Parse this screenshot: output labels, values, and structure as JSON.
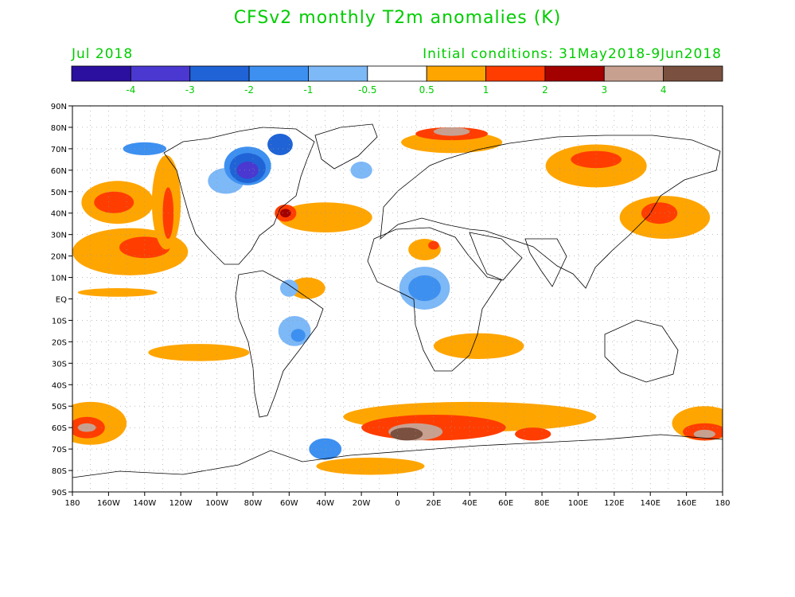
{
  "title": "CFSv2 monthly T2m anomalies (K)",
  "valid_month": "Jul 2018",
  "initial_conditions": "Initial conditions: 31May2018-9Jun2018",
  "colorbar": {
    "colors": [
      "#2b0f9e",
      "#4a38d0",
      "#1f63d6",
      "#3d90f0",
      "#7db8f7",
      "#ffffff",
      "#ffa500",
      "#ff3d00",
      "#a30000",
      "#c8a090",
      "#7a5040"
    ],
    "labels": [
      "-4",
      "-3",
      "-2",
      "-1",
      "-0.5",
      "0.5",
      "1",
      "2",
      "3",
      "4"
    ]
  },
  "axes": {
    "lat_labels": [
      "90N",
      "80N",
      "70N",
      "60N",
      "50N",
      "40N",
      "30N",
      "20N",
      "10N",
      "EQ",
      "10S",
      "20S",
      "30S",
      "40S",
      "50S",
      "60S",
      "70S",
      "80S",
      "90S"
    ],
    "lon_labels": [
      "180",
      "160W",
      "140W",
      "120W",
      "100W",
      "80W",
      "60W",
      "40W",
      "20W",
      "0",
      "20E",
      "40E",
      "60E",
      "80E",
      "100E",
      "120E",
      "140E",
      "160E",
      "180"
    ],
    "lon_range": [
      -180,
      180
    ],
    "lat_range": [
      -90,
      90
    ],
    "grid": "dotted"
  },
  "anomaly_regions": [
    {
      "lon": -50,
      "lat": 5,
      "rx": 10,
      "ry": 5,
      "level": "0.5"
    },
    {
      "lon": -155,
      "lat": 45,
      "rx": 20,
      "ry": 10,
      "level": "0.5"
    },
    {
      "lon": -157,
      "lat": 45,
      "rx": 11,
      "ry": 5,
      "level": "1"
    },
    {
      "lon": -148,
      "lat": 22,
      "rx": 32,
      "ry": 11,
      "level": "0.5"
    },
    {
      "lon": -140,
      "lat": 24,
      "rx": 14,
      "ry": 5,
      "level": "1"
    },
    {
      "lon": -128,
      "lat": 45,
      "rx": 8,
      "ry": 22,
      "level": "0.5"
    },
    {
      "lon": -127,
      "lat": 40,
      "rx": 3,
      "ry": 12,
      "level": "1"
    },
    {
      "lon": -155,
      "lat": 3,
      "rx": 22,
      "ry": 2,
      "level": "0.5"
    },
    {
      "lon": -40,
      "lat": 38,
      "rx": 26,
      "ry": 7,
      "level": "0.5"
    },
    {
      "lon": -62,
      "lat": 40,
      "rx": 6,
      "ry": 4,
      "level": "1"
    },
    {
      "lon": -62,
      "lat": 40,
      "rx": 3,
      "ry": 2,
      "level": "2"
    },
    {
      "lon": -95,
      "lat": 55,
      "rx": 10,
      "ry": 6,
      "level": "-0.5"
    },
    {
      "lon": -83,
      "lat": 62,
      "rx": 13,
      "ry": 9,
      "level": "-1"
    },
    {
      "lon": -83,
      "lat": 61,
      "rx": 10,
      "ry": 7,
      "level": "-2"
    },
    {
      "lon": -83,
      "lat": 60,
      "rx": 6,
      "ry": 4,
      "level": "-3"
    },
    {
      "lon": -65,
      "lat": 72,
      "rx": 7,
      "ry": 5,
      "level": "-2"
    },
    {
      "lon": -140,
      "lat": 70,
      "rx": 12,
      "ry": 3,
      "level": "-1"
    },
    {
      "lon": -60,
      "lat": 5,
      "rx": 5,
      "ry": 4,
      "level": "-0.5"
    },
    {
      "lon": -20,
      "lat": 60,
      "rx": 6,
      "ry": 4,
      "level": "-0.5"
    },
    {
      "lon": 15,
      "lat": 5,
      "rx": 14,
      "ry": 10,
      "level": "-0.5"
    },
    {
      "lon": 15,
      "lat": 5,
      "rx": 9,
      "ry": 6,
      "level": "-1"
    },
    {
      "lon": 15,
      "lat": 23,
      "rx": 9,
      "ry": 5,
      "level": "0.5"
    },
    {
      "lon": 20,
      "lat": 25,
      "rx": 3,
      "ry": 2,
      "level": "1"
    },
    {
      "lon": -57,
      "lat": -15,
      "rx": 9,
      "ry": 7,
      "level": "-0.5"
    },
    {
      "lon": -55,
      "lat": -17,
      "rx": 4,
      "ry": 3,
      "level": "-1"
    },
    {
      "lon": -40,
      "lat": -70,
      "rx": 9,
      "ry": 5,
      "level": "-1"
    },
    {
      "lon": 30,
      "lat": 73,
      "rx": 28,
      "ry": 5,
      "level": "0.5"
    },
    {
      "lon": 30,
      "lat": 77,
      "rx": 20,
      "ry": 3,
      "level": "1"
    },
    {
      "lon": 30,
      "lat": 78,
      "rx": 10,
      "ry": 2,
      "level": "3"
    },
    {
      "lon": 110,
      "lat": 62,
      "rx": 28,
      "ry": 10,
      "level": "0.5"
    },
    {
      "lon": 110,
      "lat": 65,
      "rx": 14,
      "ry": 4,
      "level": "1"
    },
    {
      "lon": 148,
      "lat": 38,
      "rx": 25,
      "ry": 10,
      "level": "0.5"
    },
    {
      "lon": 145,
      "lat": 40,
      "rx": 10,
      "ry": 5,
      "level": "1"
    },
    {
      "lon": 45,
      "lat": -22,
      "rx": 25,
      "ry": 6,
      "level": "0.5"
    },
    {
      "lon": -110,
      "lat": -25,
      "rx": 28,
      "ry": 4,
      "level": "0.5"
    },
    {
      "lon": -170,
      "lat": -58,
      "rx": 20,
      "ry": 10,
      "level": "0.5"
    },
    {
      "lon": -172,
      "lat": -60,
      "rx": 10,
      "ry": 5,
      "level": "1"
    },
    {
      "lon": -172,
      "lat": -60,
      "rx": 5,
      "ry": 2,
      "level": "3"
    },
    {
      "lon": 40,
      "lat": -55,
      "rx": 70,
      "ry": 7,
      "level": "0.5"
    },
    {
      "lon": 20,
      "lat": -60,
      "rx": 40,
      "ry": 6,
      "level": "1"
    },
    {
      "lon": 10,
      "lat": -62,
      "rx": 15,
      "ry": 4,
      "level": "3"
    },
    {
      "lon": 5,
      "lat": -63,
      "rx": 9,
      "ry": 3,
      "level": "4"
    },
    {
      "lon": 75,
      "lat": -63,
      "rx": 10,
      "ry": 3,
      "level": "1"
    },
    {
      "lon": 170,
      "lat": -58,
      "rx": 18,
      "ry": 8,
      "level": "0.5"
    },
    {
      "lon": 170,
      "lat": -62,
      "rx": 12,
      "ry": 4,
      "level": "1"
    },
    {
      "lon": 170,
      "lat": -63,
      "rx": 6,
      "ry": 2,
      "level": "3"
    },
    {
      "lon": -15,
      "lat": -78,
      "rx": 30,
      "ry": 4,
      "level": "0.5"
    }
  ]
}
